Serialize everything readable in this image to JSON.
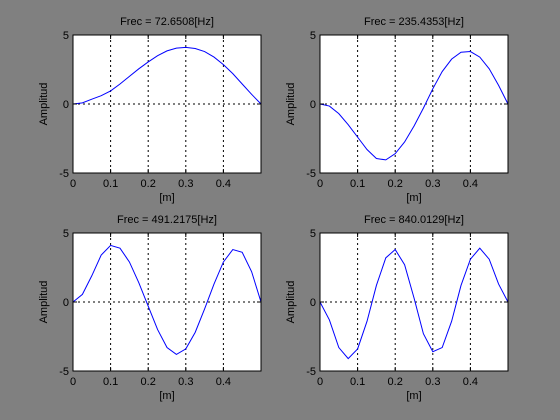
{
  "figure": {
    "background": "#808080",
    "axes_background": "#ffffff",
    "line_color": "#0000ff",
    "grid_color": "#000000"
  },
  "chart_data": [
    {
      "type": "line",
      "title": "Frec = 72.6508[Hz]",
      "xlabel": "[m]",
      "ylabel": "Amplitud",
      "xlim": [
        0,
        0.5
      ],
      "ylim": [
        -5,
        5
      ],
      "xticks": [
        0,
        0.1,
        0.2,
        0.3,
        0.4
      ],
      "yticks": [
        -5,
        0,
        5
      ],
      "grid": true,
      "series": [
        {
          "x": [
            0,
            0.025,
            0.05,
            0.075,
            0.1,
            0.125,
            0.15,
            0.175,
            0.2,
            0.225,
            0.25,
            0.275,
            0.3,
            0.325,
            0.35,
            0.375,
            0.4,
            0.425,
            0.45,
            0.475,
            0.5
          ],
          "y": [
            0,
            0.08,
            0.35,
            0.6,
            0.95,
            1.45,
            2.0,
            2.55,
            3.05,
            3.5,
            3.85,
            4.05,
            4.1,
            4.02,
            3.8,
            3.4,
            2.85,
            2.2,
            1.45,
            0.7,
            0
          ]
        }
      ]
    },
    {
      "type": "line",
      "title": "Frec = 235.4353[Hz]",
      "xlabel": "[m]",
      "ylabel": "Amplitud",
      "xlim": [
        0,
        0.5
      ],
      "ylim": [
        -5,
        5
      ],
      "xticks": [
        0,
        0.1,
        0.2,
        0.3,
        0.4
      ],
      "yticks": [
        -5,
        0,
        5
      ],
      "grid": true,
      "series": [
        {
          "x": [
            0,
            0.025,
            0.05,
            0.075,
            0.1,
            0.125,
            0.15,
            0.175,
            0.2,
            0.225,
            0.25,
            0.275,
            0.3,
            0.325,
            0.35,
            0.375,
            0.4,
            0.425,
            0.45,
            0.475,
            0.5
          ],
          "y": [
            0,
            -0.15,
            -0.7,
            -1.5,
            -2.4,
            -3.3,
            -3.95,
            -4.05,
            -3.6,
            -2.75,
            -1.6,
            -0.3,
            1.1,
            2.35,
            3.25,
            3.75,
            3.8,
            3.4,
            2.55,
            1.35,
            0
          ]
        }
      ]
    },
    {
      "type": "line",
      "title": "Frec = 491.2175[Hz]",
      "xlabel": "[m]",
      "ylabel": "Amplitud",
      "xlim": [
        0,
        0.5
      ],
      "ylim": [
        -5,
        5
      ],
      "xticks": [
        0,
        0.1,
        0.2,
        0.3,
        0.4
      ],
      "yticks": [
        -5,
        0,
        5
      ],
      "grid": true,
      "series": [
        {
          "x": [
            0,
            0.025,
            0.05,
            0.075,
            0.1,
            0.125,
            0.15,
            0.175,
            0.2,
            0.225,
            0.25,
            0.275,
            0.3,
            0.325,
            0.35,
            0.375,
            0.4,
            0.425,
            0.45,
            0.475,
            0.5
          ],
          "y": [
            0,
            0.55,
            1.9,
            3.4,
            4.1,
            3.9,
            2.9,
            1.4,
            -0.3,
            -2.0,
            -3.3,
            -3.8,
            -3.4,
            -2.2,
            -0.5,
            1.3,
            2.9,
            3.8,
            3.6,
            2.2,
            0
          ]
        }
      ]
    },
    {
      "type": "line",
      "title": "Frec = 840.0129[Hz]",
      "xlabel": "[m]",
      "ylabel": "Amplitud",
      "xlim": [
        0,
        0.5
      ],
      "ylim": [
        -5,
        5
      ],
      "xticks": [
        0,
        0.1,
        0.2,
        0.3,
        0.4
      ],
      "yticks": [
        -5,
        0,
        5
      ],
      "grid": true,
      "series": [
        {
          "x": [
            0,
            0.025,
            0.05,
            0.075,
            0.1,
            0.125,
            0.15,
            0.175,
            0.2,
            0.225,
            0.25,
            0.275,
            0.3,
            0.325,
            0.35,
            0.375,
            0.4,
            0.425,
            0.45,
            0.475,
            0.5
          ],
          "y": [
            0,
            -1.3,
            -3.3,
            -4.1,
            -3.4,
            -1.4,
            1.2,
            3.2,
            3.8,
            2.7,
            0.3,
            -2.3,
            -3.6,
            -3.3,
            -1.4,
            1.2,
            3.1,
            3.9,
            3.1,
            1.3,
            0
          ]
        }
      ]
    }
  ]
}
